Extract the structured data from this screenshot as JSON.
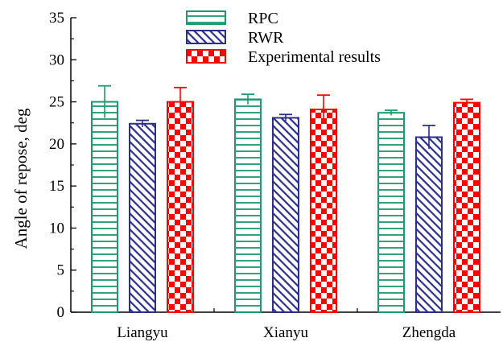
{
  "chart_data": {
    "type": "bar",
    "ylabel": "Angle of repose, deg",
    "xlabel": "",
    "ylim": [
      0,
      35
    ],
    "yticks": [
      0,
      5,
      10,
      15,
      20,
      25,
      30,
      35
    ],
    "categories": [
      "Liangyu",
      "Xianyu",
      "Zhengda"
    ],
    "series": [
      {
        "name": "RPC",
        "values": [
          25.0,
          25.3,
          23.7
        ],
        "errors": [
          1.9,
          0.6,
          0.3
        ],
        "color": "#1a9a6c",
        "pattern": "horizontal-lines"
      },
      {
        "name": "RWR",
        "values": [
          22.4,
          23.1,
          20.8
        ],
        "errors": [
          0.4,
          0.4,
          1.4
        ],
        "color": "#2b2e8a",
        "pattern": "diagonal-hatch"
      },
      {
        "name": "Experimental results",
        "values": [
          25.0,
          24.1,
          24.9
        ],
        "errors": [
          1.7,
          1.7,
          0.4
        ],
        "color": "#ff0000",
        "pattern": "checkerboard"
      }
    ],
    "legend": {
      "position": "top-center"
    },
    "grid": false
  }
}
